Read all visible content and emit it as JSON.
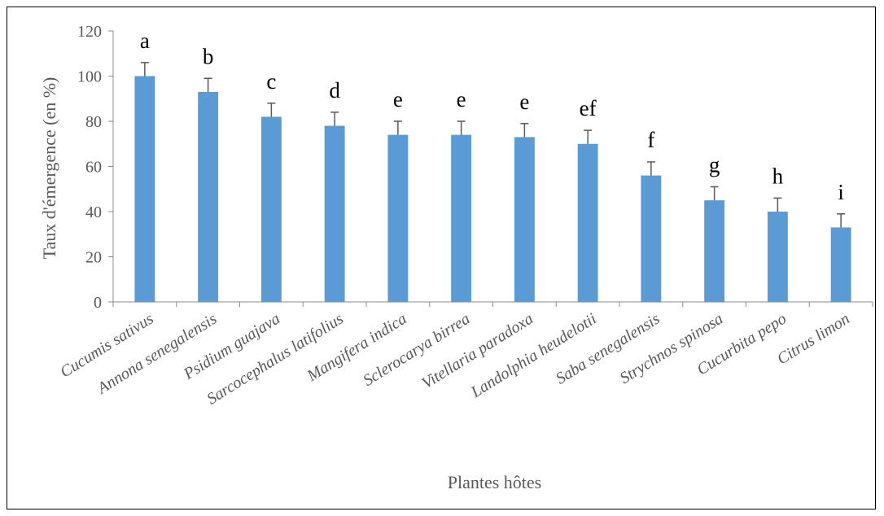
{
  "chart_data": {
    "type": "bar",
    "title": "",
    "xlabel": "Plantes hôtes",
    "ylabel": "Taux d'émergence (en %)",
    "ylim": [
      0,
      120
    ],
    "yticks": [
      0,
      20,
      40,
      60,
      80,
      100,
      120
    ],
    "grid": false,
    "legend": "none",
    "bar_color": "#5B9BD5",
    "error_bar_color": "#595959",
    "categories": [
      "Cucumis sativus",
      "Annona senegalensis",
      "Psidium guajava",
      "Sarcocephalus latifolius",
      "Mangifera indica",
      "Sclerocarya birrea",
      "Vitellaria paradoxa",
      "Landolphia heudelotii",
      "Saba senegalensis",
      "Strychnos spinosa",
      "Cucurbita pepo",
      "Citrus limon"
    ],
    "values": [
      100,
      93,
      82,
      78,
      74,
      74,
      73,
      70,
      56,
      45,
      40,
      33
    ],
    "errors": [
      6,
      6,
      6,
      6,
      6,
      6,
      6,
      6,
      6,
      6,
      6,
      6
    ],
    "annotations": [
      "a",
      "b",
      "c",
      "d",
      "e",
      "e",
      "e",
      "ef",
      "f",
      "g",
      "h",
      "i"
    ]
  }
}
